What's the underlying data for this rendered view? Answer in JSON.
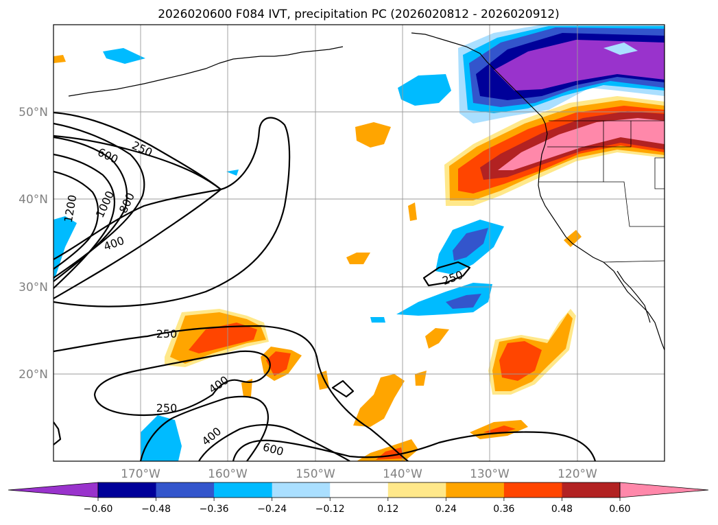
{
  "title": "2026020600 F084 IVT, precipitation PC (2026020812 - 2026020912)",
  "lon_labels": [
    "170°W",
    "160°W",
    "150°W",
    "140°W",
    "130°W",
    "120°W"
  ],
  "lat_labels": [
    "50°N",
    "40°N",
    "30°N",
    "20°N"
  ],
  "colorbar": {
    "ticks": [
      "−0.60",
      "−0.48",
      "−0.36",
      "−0.24",
      "−0.12",
      "0.12",
      "0.24",
      "0.36",
      "0.48",
      "0.60"
    ],
    "colors": [
      "#9933cc",
      "#000099",
      "#3355cc",
      "#00bbff",
      "#aadfff",
      "#ffffff",
      "#ffe88a",
      "#ffa500",
      "#ff4500",
      "#b22222",
      "#ff88aa"
    ]
  },
  "contour_labels": [
    "250",
    "600",
    "1200",
    "1000",
    "800",
    "400",
    "250",
    "250",
    "400",
    "250",
    "400",
    "600"
  ],
  "chart_data": {
    "type": "map",
    "projection": "cylindrical",
    "extent": {
      "lon": [
        -180,
        -110
      ],
      "lat": [
        10,
        60
      ]
    },
    "grid": true,
    "ivt_contour_levels": [
      250,
      400,
      600,
      800,
      1000,
      1200
    ],
    "precip_pc_levels": [
      -0.6,
      -0.48,
      -0.36,
      -0.24,
      -0.12,
      0.12,
      0.24,
      0.36,
      0.48,
      0.6
    ]
  }
}
